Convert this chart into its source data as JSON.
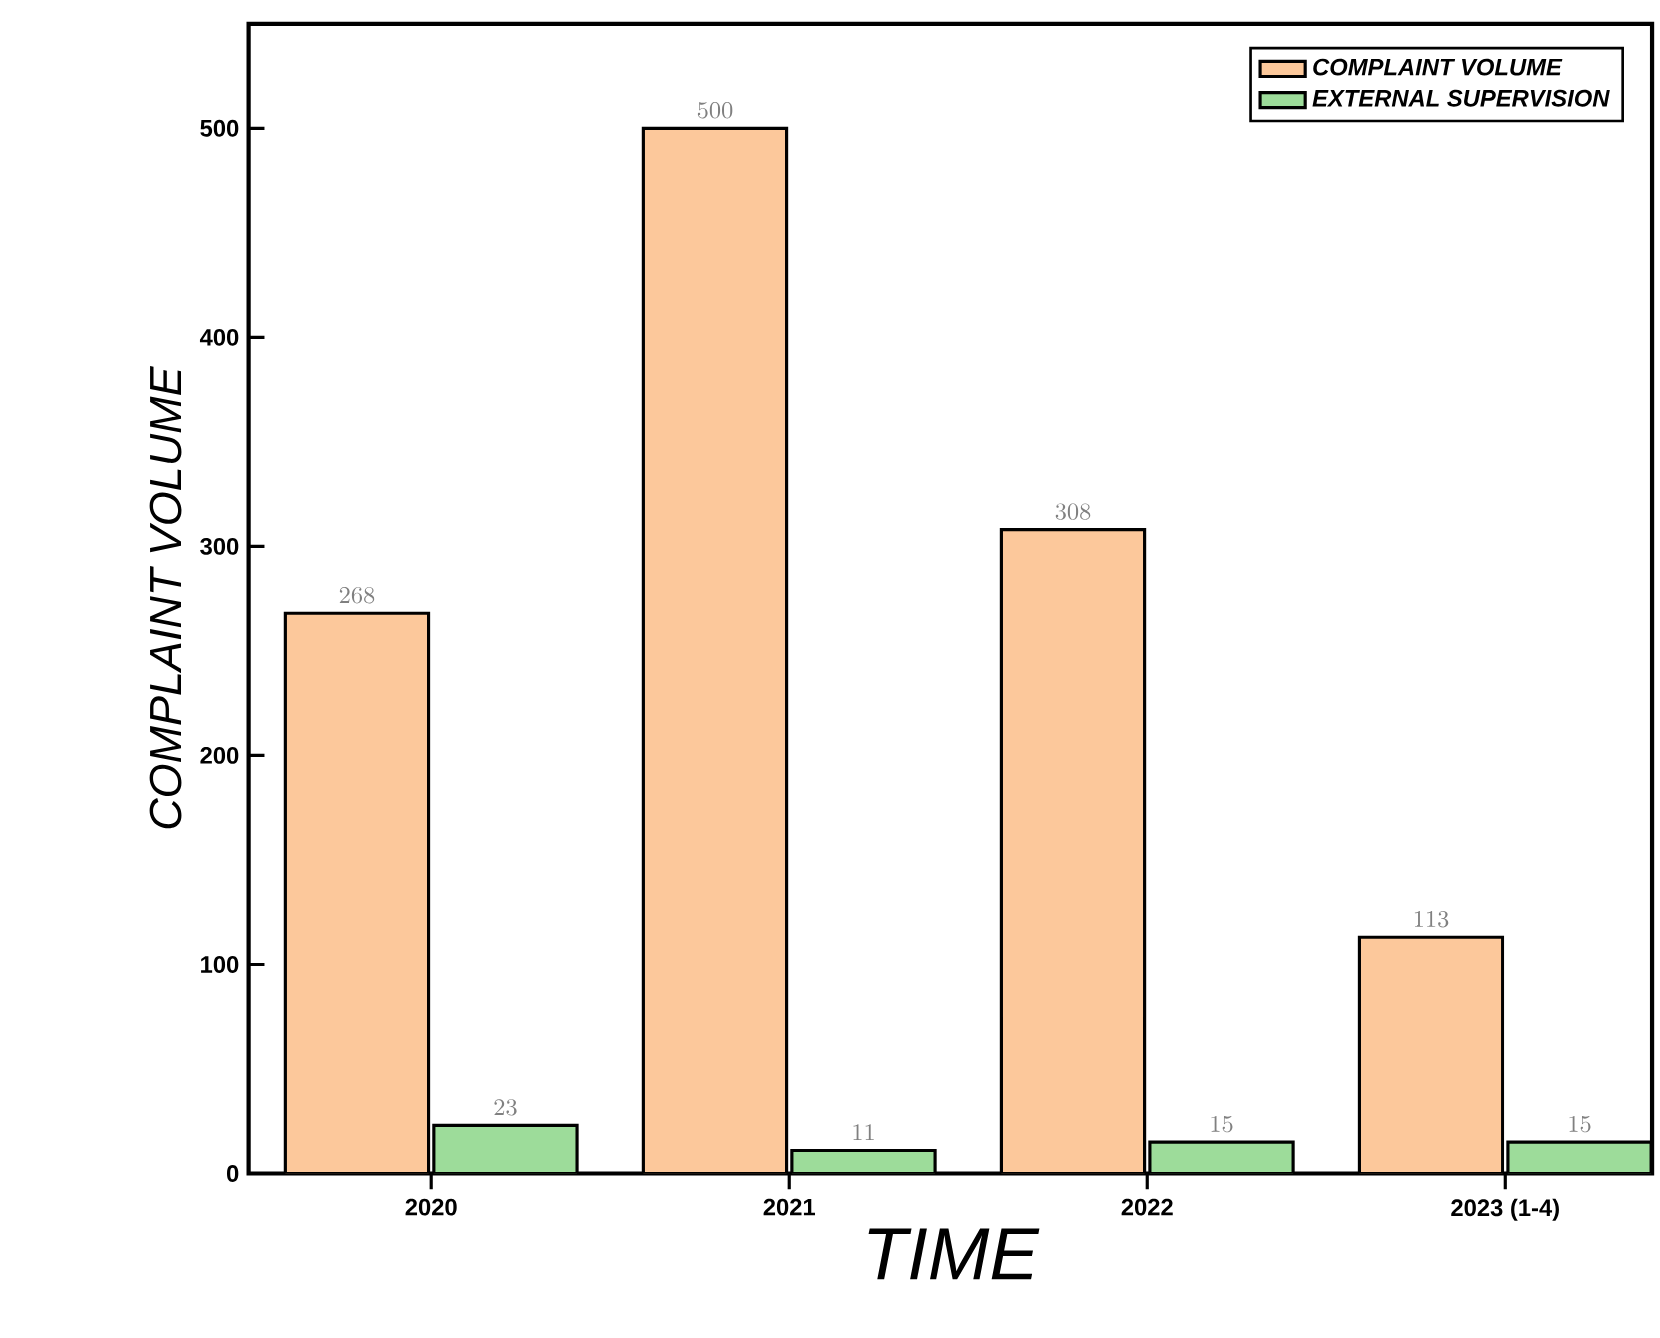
{
  "chart_data": {
    "type": "bar",
    "xlabel": "TIME",
    "ylabel": "COMPLAINT VOLUME",
    "categories": [
      "2020",
      "2021",
      "2022",
      "2023 (1-4)"
    ],
    "series": [
      {
        "name": "COMPLAINT VOLUME",
        "color": "#fcc89b",
        "values": [
          268,
          500,
          308,
          113
        ]
      },
      {
        "name": "EXTERNAL SUPERVISION",
        "color": "#9ddc9a",
        "values": [
          23,
          11,
          15,
          15
        ]
      }
    ],
    "ylim": [
      0,
      550
    ],
    "yticks": [
      0,
      100,
      200,
      300,
      400,
      500
    ],
    "data_labels": true,
    "legend": "top right",
    "grid": false
  }
}
